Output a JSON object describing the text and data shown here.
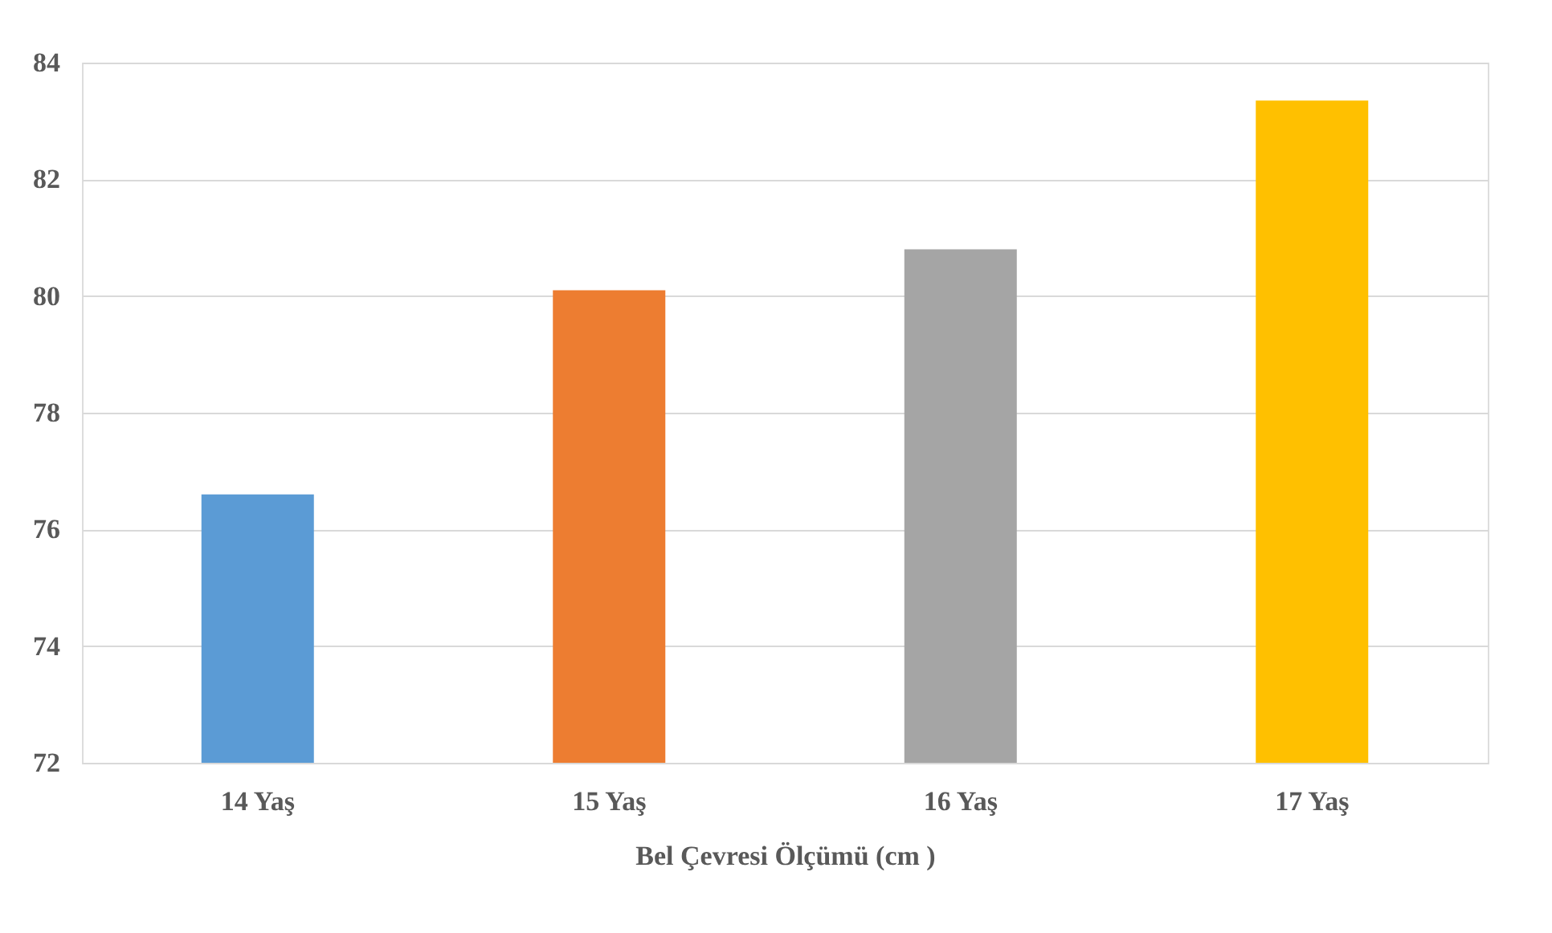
{
  "chart_data": {
    "type": "bar",
    "xlabel": "Bel Çevresi Ölçümü (cm )",
    "categories": [
      "14 Yaş",
      "15 Yaş",
      "16 Yaş",
      "17 Yaş"
    ],
    "values": [
      76.6,
      80.1,
      80.8,
      83.35
    ],
    "colors": [
      "#5b9bd5",
      "#ed7d31",
      "#a5a5a5",
      "#ffc000"
    ],
    "ylim": [
      72,
      84
    ],
    "yticks": [
      72,
      74,
      76,
      78,
      80,
      82,
      84
    ],
    "grid": "y"
  }
}
